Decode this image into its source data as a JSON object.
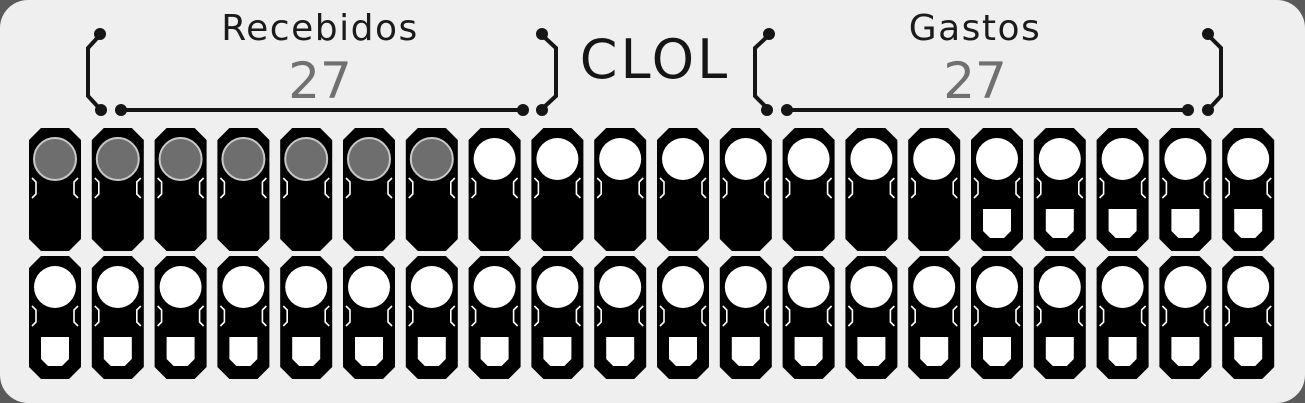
{
  "header": {
    "received_label": "Recebidos",
    "received_value": "27",
    "currency": "CLOL",
    "spent_label": "Gastos",
    "spent_value": "27"
  },
  "grid": {
    "columns": 20,
    "rows": [
      [
        "filled",
        "filled",
        "filled",
        "filled",
        "filled",
        "filled",
        "filled",
        "empty",
        "empty",
        "empty",
        "empty",
        "empty",
        "empty",
        "empty",
        "empty",
        "empty-with-slot",
        "empty-with-slot",
        "empty-with-slot",
        "empty-with-slot",
        "empty-with-slot"
      ],
      [
        "empty-with-slot",
        "empty-with-slot",
        "empty-with-slot",
        "empty-with-slot",
        "empty-with-slot",
        "empty-with-slot",
        "empty-with-slot",
        "empty-with-slot",
        "empty-with-slot",
        "empty-with-slot",
        "empty-with-slot",
        "empty-with-slot",
        "empty-with-slot",
        "empty-with-slot",
        "empty-with-slot",
        "empty-with-slot",
        "empty-with-slot",
        "empty-with-slot",
        "empty-with-slot",
        "empty-with-slot"
      ]
    ]
  },
  "colors": {
    "panel": "#efefef",
    "cell": "#000000",
    "filled_circle": "#6e6e6e",
    "empty_circle": "#ffffff"
  }
}
